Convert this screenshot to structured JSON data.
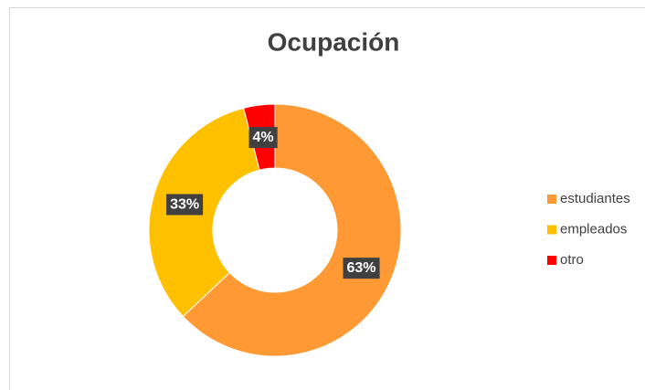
{
  "chart_data": {
    "type": "pie",
    "title": "Ocupación",
    "categories": [
      "estudiantes",
      "empleados",
      "otro"
    ],
    "values": [
      63,
      33,
      4
    ],
    "value_labels": [
      "63%",
      "33%",
      "4%"
    ],
    "colors": [
      "#FF9933",
      "#FFC000",
      "#FF0000"
    ],
    "legend": "right"
  }
}
